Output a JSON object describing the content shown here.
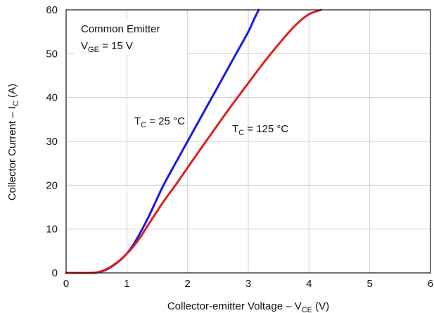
{
  "chart_data": {
    "type": "line",
    "xlabel": {
      "main": "Collector-emitter Voltage – V",
      "sub": "CE",
      "unit": " (V)"
    },
    "ylabel": {
      "main": "Collector Current – I",
      "sub": "C",
      "unit": " (A)"
    },
    "xlim": [
      0,
      6
    ],
    "ylim": [
      0,
      60
    ],
    "xticks": [
      "0",
      "1",
      "2",
      "3",
      "4",
      "5",
      "6"
    ],
    "yticks": [
      "0",
      "10",
      "20",
      "30",
      "40",
      "50",
      "60"
    ],
    "grid": true,
    "legend": "none",
    "annotations": {
      "condition_line1": "Common Emitter",
      "condition_line2": {
        "main": "V",
        "sub": "GE",
        "rest": " = 15 V"
      }
    },
    "series": [
      {
        "name": "T_C = 25 °C",
        "label": {
          "main": "T",
          "sub": "C",
          "rest": " = 25 °C"
        },
        "color": "#1a1ae6",
        "x": [
          0.0,
          0.4,
          0.5,
          0.6,
          0.7,
          0.8,
          0.9,
          1.0,
          1.1,
          1.2,
          1.3,
          1.4,
          1.5,
          1.6,
          1.8,
          2.0,
          2.2,
          2.4,
          2.6,
          2.8,
          3.0,
          3.1,
          3.17
        ],
        "y": [
          0.0,
          0.0,
          0.1,
          0.4,
          1.0,
          1.9,
          3.0,
          4.4,
          6.3,
          8.6,
          11.2,
          14.0,
          17.0,
          19.9,
          25.0,
          30.0,
          35.0,
          40.0,
          45.0,
          50.0,
          55.0,
          58.0,
          60.0
        ]
      },
      {
        "name": "T_C = 125 °C",
        "label": {
          "main": "T",
          "sub": "C",
          "rest": " = 125 °C"
        },
        "color": "#e02020",
        "x": [
          0.0,
          0.4,
          0.5,
          0.6,
          0.7,
          0.8,
          0.9,
          1.0,
          1.1,
          1.2,
          1.3,
          1.4,
          1.5,
          1.6,
          1.8,
          2.0,
          2.2,
          2.4,
          2.6,
          2.8,
          3.0,
          3.2,
          3.4,
          3.6,
          3.8,
          4.0,
          4.2
        ],
        "y": [
          0.0,
          0.0,
          0.1,
          0.5,
          1.1,
          2.0,
          3.1,
          4.4,
          5.9,
          7.7,
          9.8,
          12.0,
          14.1,
          16.2,
          20.0,
          24.0,
          28.0,
          31.9,
          35.8,
          39.6,
          43.3,
          47.0,
          50.5,
          53.8,
          56.8,
          59.0,
          60.0
        ]
      }
    ]
  }
}
